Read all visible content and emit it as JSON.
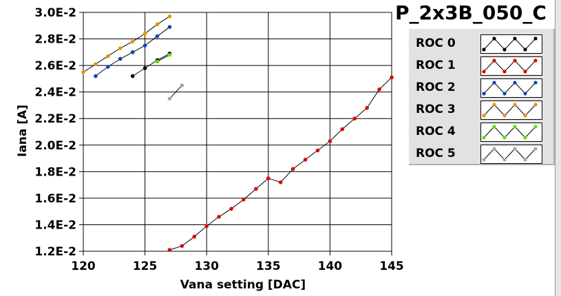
{
  "window": {
    "title": "P_2x3B_050_C"
  },
  "chart_data": {
    "type": "line",
    "title": "P_2x3B_050_C",
    "xlabel": "Vana setting [DAC]",
    "ylabel": "Iana [A]",
    "xlim": [
      120,
      145
    ],
    "ylim": [
      0.012,
      0.03
    ],
    "x_ticks": [
      120,
      125,
      130,
      135,
      140,
      145
    ],
    "x_tick_labels": [
      "120",
      "125",
      "130",
      "135",
      "140",
      "145"
    ],
    "y_ticks": [
      0.012,
      0.014,
      0.016,
      0.018,
      0.02,
      0.022,
      0.024,
      0.026,
      0.028,
      0.03
    ],
    "y_tick_labels": [
      "1.2E-2",
      "1.4E-2",
      "1.6E-2",
      "1.8E-2",
      "2.0E-2",
      "2.2E-2",
      "2.4E-2",
      "2.6E-2",
      "2.8E-2",
      "3.0E-2"
    ],
    "grid": true,
    "legend_position": "right",
    "series": [
      {
        "name": "ROC 0",
        "color": "#000000",
        "x": [
          124,
          125,
          126,
          127
        ],
        "y": [
          0.0252,
          0.0258,
          0.0264,
          0.0269
        ]
      },
      {
        "name": "ROC 1",
        "color": "#e00000",
        "x": [
          127,
          128,
          129,
          130,
          131,
          132,
          133,
          134,
          135,
          136,
          137,
          138,
          139,
          140,
          141,
          142,
          143,
          144,
          145
        ],
        "y": [
          0.0121,
          0.0124,
          0.0131,
          0.0139,
          0.0146,
          0.0152,
          0.0159,
          0.0167,
          0.0175,
          0.0172,
          0.0182,
          0.0189,
          0.0196,
          0.0203,
          0.0212,
          0.022,
          0.0228,
          0.0242,
          0.0251
        ]
      },
      {
        "name": "ROC 2",
        "color": "#1040c0",
        "x": [
          121,
          122,
          123,
          124,
          125,
          126,
          127
        ],
        "y": [
          0.0252,
          0.0259,
          0.0265,
          0.027,
          0.0275,
          0.0282,
          0.0289
        ]
      },
      {
        "name": "ROC 3",
        "color": "#f09000",
        "x": [
          120,
          121,
          122,
          123,
          124,
          125,
          126,
          127
        ],
        "y": [
          0.0255,
          0.0261,
          0.0267,
          0.0273,
          0.0278,
          0.0284,
          0.0291,
          0.0297
        ]
      },
      {
        "name": "ROC 4",
        "color": "#60e000",
        "x": [
          126,
          127
        ],
        "y": [
          0.0263,
          0.0268
        ]
      },
      {
        "name": "ROC 5",
        "color": "#a8a8a8",
        "x": [
          127,
          128
        ],
        "y": [
          0.0235,
          0.0245
        ]
      }
    ]
  }
}
